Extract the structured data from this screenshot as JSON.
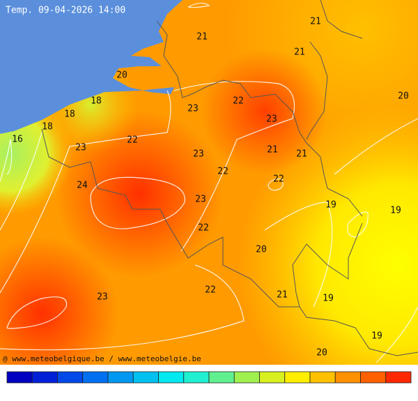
{
  "header": {
    "title": "Temp. 09-04-2026 14:00"
  },
  "labels": [
    21,
    21,
    21,
    20,
    20,
    22,
    23,
    23,
    18,
    18,
    18,
    16,
    22,
    23,
    23,
    21,
    21,
    22,
    22,
    24,
    23,
    19,
    19,
    22,
    20,
    22,
    23,
    21,
    19,
    19,
    20
  ],
  "footer": {
    "credit": "@ www.meteobelgique.be / www.meteobelgie.be"
  }
}
